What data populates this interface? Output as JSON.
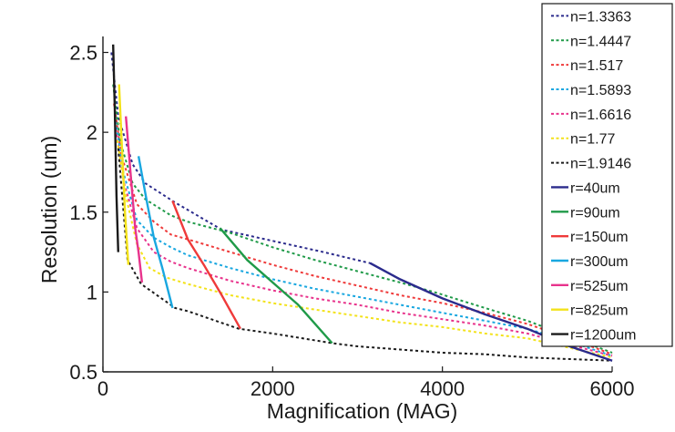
{
  "chart_data": {
    "type": "line",
    "xlabel": "Magnification (MAG)",
    "ylabel": "Resolution (um)",
    "xlim": [
      0,
      6000
    ],
    "ylim": [
      0.5,
      2.6
    ],
    "x_ticks": [
      0,
      2000,
      4000,
      6000
    ],
    "y_ticks": [
      0.5,
      1,
      1.5,
      2,
      2.5
    ],
    "x_tick_labels": [
      "0",
      "2000",
      "4000",
      "6000"
    ],
    "y_tick_labels": [
      "0.5",
      "1",
      "1.5",
      "2",
      "2.5"
    ],
    "grid": false,
    "legend_position": "right, outside plot",
    "series": [
      {
        "name": "n=1.3363",
        "style": "dotted",
        "color": "#2b2b8c",
        "x": [
          100,
          180,
          350,
          500,
          850,
          1400,
          2000,
          2600,
          3150,
          3500,
          4000,
          4500,
          5000,
          5500,
          6000
        ],
        "y": [
          2.5,
          2.1,
          1.8,
          1.68,
          1.56,
          1.39,
          1.32,
          1.25,
          1.18,
          1.08,
          0.96,
          0.86,
          0.77,
          0.66,
          0.57
        ]
      },
      {
        "name": "n=1.4447",
        "style": "dotted",
        "color": "#1f9a48",
        "x": [
          120,
          200,
          350,
          500,
          800,
          1000,
          1500,
          2000,
          2500,
          3000,
          3500,
          3900,
          4500,
          5000,
          5500,
          6000
        ],
        "y": [
          2.3,
          1.95,
          1.68,
          1.58,
          1.48,
          1.44,
          1.37,
          1.28,
          1.2,
          1.13,
          1.06,
          1.0,
          0.9,
          0.82,
          0.72,
          0.62
        ]
      },
      {
        "name": "n=1.517",
        "style": "dotted",
        "color": "#ef3a3a",
        "x": [
          130,
          220,
          400,
          600,
          800,
          1000,
          1500,
          2000,
          2500,
          3000,
          3500,
          4000,
          4500,
          5000,
          5500,
          6000
        ],
        "y": [
          2.18,
          1.85,
          1.55,
          1.44,
          1.36,
          1.33,
          1.25,
          1.17,
          1.1,
          1.04,
          0.98,
          0.93,
          0.87,
          0.8,
          0.71,
          0.61
        ]
      },
      {
        "name": "n=1.5893",
        "style": "dotted",
        "color": "#19a7e0",
        "x": [
          140,
          240,
          400,
          600,
          800,
          1000,
          1500,
          2000,
          2500,
          3000,
          3500,
          4000,
          4500,
          5000,
          5500,
          6000
        ],
        "y": [
          2.1,
          1.75,
          1.45,
          1.34,
          1.28,
          1.23,
          1.15,
          1.08,
          1.02,
          0.97,
          0.92,
          0.87,
          0.82,
          0.77,
          0.69,
          0.6
        ]
      },
      {
        "name": "n=1.6616",
        "style": "dotted",
        "color": "#e8338c",
        "x": [
          150,
          250,
          400,
          600,
          800,
          1000,
          1500,
          2000,
          2500,
          3000,
          3500,
          4000,
          4500,
          5000,
          5500,
          6000
        ],
        "y": [
          2.02,
          1.68,
          1.4,
          1.25,
          1.19,
          1.15,
          1.07,
          1.01,
          0.96,
          0.92,
          0.87,
          0.83,
          0.79,
          0.74,
          0.67,
          0.6
        ]
      },
      {
        "name": "n=1.77",
        "style": "dotted",
        "color": "#f3e21a",
        "x": [
          170,
          270,
          400,
          550,
          750,
          1000,
          1500,
          2000,
          2500,
          3000,
          3500,
          4000,
          4500,
          5000,
          5500,
          6000
        ],
        "y": [
          1.95,
          1.6,
          1.3,
          1.15,
          1.09,
          1.05,
          0.98,
          0.93,
          0.89,
          0.85,
          0.81,
          0.78,
          0.74,
          0.71,
          0.65,
          0.59
        ]
      },
      {
        "name": "n=1.9146",
        "style": "dotted",
        "color": "#1a1a1a",
        "x": [
          180,
          290,
          450,
          850,
          1000,
          1600,
          2000,
          2700,
          3000,
          3500,
          4000,
          4500,
          5000,
          5500,
          6000
        ],
        "y": [
          1.9,
          1.2,
          1.05,
          0.9,
          0.88,
          0.77,
          0.74,
          0.68,
          0.66,
          0.64,
          0.62,
          0.61,
          0.59,
          0.58,
          0.57
        ]
      },
      {
        "name": "r=40um",
        "style": "solid",
        "color": "#2b2b8c",
        "x": [
          3150,
          3500,
          4000,
          4500,
          5000,
          5500,
          6000
        ],
        "y": [
          1.18,
          1.08,
          0.96,
          0.86,
          0.77,
          0.66,
          0.57
        ]
      },
      {
        "name": "r=90um",
        "style": "solid",
        "color": "#1f9a48",
        "x": [
          1380,
          1700,
          2000,
          2300,
          2700
        ],
        "y": [
          1.4,
          1.2,
          1.06,
          0.92,
          0.68
        ]
      },
      {
        "name": "r=150um",
        "style": "solid",
        "color": "#ef3a3a",
        "x": [
          820,
          1000,
          1200,
          1400,
          1620
        ],
        "y": [
          1.57,
          1.33,
          1.16,
          0.98,
          0.77
        ]
      },
      {
        "name": "r=300um",
        "style": "solid",
        "color": "#19a7e0",
        "x": [
          420,
          520,
          600,
          700,
          820
        ],
        "y": [
          1.85,
          1.56,
          1.34,
          1.15,
          0.9
        ]
      },
      {
        "name": "r=525um",
        "style": "solid",
        "color": "#e8338c",
        "x": [
          270,
          320,
          380,
          420,
          460
        ],
        "y": [
          2.1,
          1.78,
          1.4,
          1.25,
          1.06
        ]
      },
      {
        "name": "r=825um",
        "style": "solid",
        "color": "#f3e21a",
        "x": [
          190,
          220,
          260,
          300
        ],
        "y": [
          2.3,
          1.95,
          1.5,
          1.17
        ]
      },
      {
        "name": "r=1200um",
        "style": "solid",
        "color": "#1a1a1a",
        "x": [
          120,
          140,
          160,
          180
        ],
        "y": [
          2.55,
          2.15,
          1.6,
          1.25
        ]
      }
    ]
  }
}
